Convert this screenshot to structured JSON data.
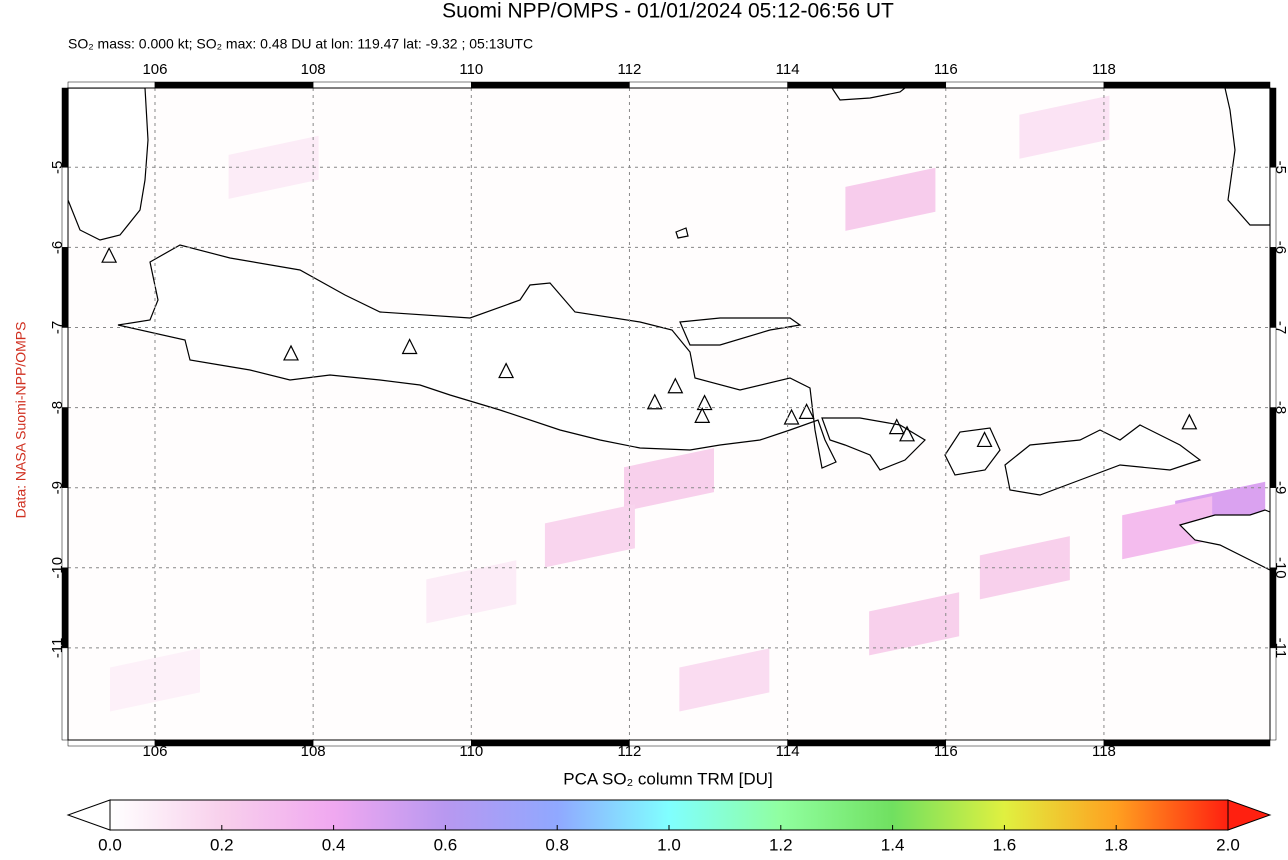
{
  "map": {
    "title": "Suomi NPP/OMPS - 01/01/2024 05:12-06:56 UT",
    "subtitle": "SO₂ mass: 0.000 kt; SO₂ max: 0.48 DU at lon: 119.47 lat: -9.32 ; 05:13UTC",
    "credit": "Data: NASA Suomi-NPP/OMPS",
    "lonlim": [
      104.9,
      120.1
    ],
    "latlim": [
      -12.15,
      -4.01
    ],
    "lonticks": [
      106,
      108,
      110,
      112,
      114,
      116,
      118
    ],
    "latticks": [
      -5,
      -6,
      -7,
      -8,
      -9,
      -10,
      -11
    ],
    "grid": true,
    "volcanoes": [
      {
        "lon": 105.42,
        "lat": -6.11
      },
      {
        "lon": 107.72,
        "lat": -7.33
      },
      {
        "lon": 109.22,
        "lat": -7.25
      },
      {
        "lon": 110.44,
        "lat": -7.55
      },
      {
        "lon": 112.32,
        "lat": -7.94
      },
      {
        "lon": 112.58,
        "lat": -7.74
      },
      {
        "lon": 112.95,
        "lat": -7.95
      },
      {
        "lon": 112.92,
        "lat": -8.11
      },
      {
        "lon": 114.05,
        "lat": -8.13
      },
      {
        "lon": 114.24,
        "lat": -8.06
      },
      {
        "lon": 115.38,
        "lat": -8.25
      },
      {
        "lon": 115.51,
        "lat": -8.34
      },
      {
        "lon": 116.49,
        "lat": -8.41
      },
      {
        "lon": 119.08,
        "lat": -8.19
      }
    ],
    "so2_pixels": [
      {
        "lon": 119.47,
        "lat": -9.32,
        "value": 0.48
      },
      {
        "lon": 118.8,
        "lat": -9.5,
        "value": 0.3
      },
      {
        "lon": 115.3,
        "lat": -5.4,
        "value": 0.22
      },
      {
        "lon": 112.5,
        "lat": -8.9,
        "value": 0.2
      },
      {
        "lon": 111.5,
        "lat": -9.6,
        "value": 0.18
      },
      {
        "lon": 117.0,
        "lat": -10.0,
        "value": 0.2
      },
      {
        "lon": 115.6,
        "lat": -10.7,
        "value": 0.2
      },
      {
        "lon": 113.2,
        "lat": -11.4,
        "value": 0.15
      },
      {
        "lon": 117.5,
        "lat": -4.5,
        "value": 0.12
      },
      {
        "lon": 107.5,
        "lat": -5.0,
        "value": 0.08
      },
      {
        "lon": 110.0,
        "lat": -10.3,
        "value": 0.08
      },
      {
        "lon": 106.0,
        "lat": -11.4,
        "value": 0.06
      }
    ]
  },
  "colorbar": {
    "label": "PCA SO₂ column TRM [DU]",
    "lim": [
      0,
      2
    ],
    "ticks": [
      {
        "value": 0,
        "label": "0.0"
      },
      0.2,
      0.4,
      0.6,
      0.8,
      {
        "value": 1,
        "label": "1.0"
      },
      1.2,
      1.4,
      1.6,
      1.8,
      {
        "value": 2,
        "label": "2.0"
      }
    ],
    "colors": [
      "#ffffff",
      "#f8d0ec",
      "#f0a8f0",
      "#b898f0",
      "#90a8ff",
      "#80ffff",
      "#90ffa0",
      "#70e060",
      "#e0f040",
      "#ffa020",
      "#ff2010"
    ]
  }
}
